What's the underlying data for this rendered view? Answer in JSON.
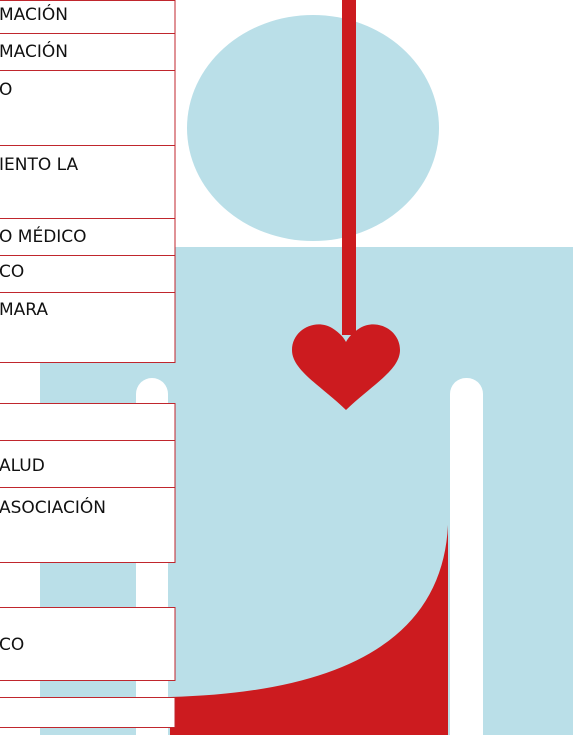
{
  "items": [
    {
      "label": "MACIÓN"
    },
    {
      "label": "MACIÓN"
    },
    {
      "label": "O"
    },
    {
      "label": "IENTO LA"
    },
    {
      "label": "O  MÉDICO"
    },
    {
      "label": "CO"
    },
    {
      "label": "MARA"
    },
    {
      "label": ""
    },
    {
      "label": "ALUD"
    },
    {
      "label": "ASOCIACIÓN"
    },
    {
      "label": "CO"
    },
    {
      "label": ""
    }
  ]
}
